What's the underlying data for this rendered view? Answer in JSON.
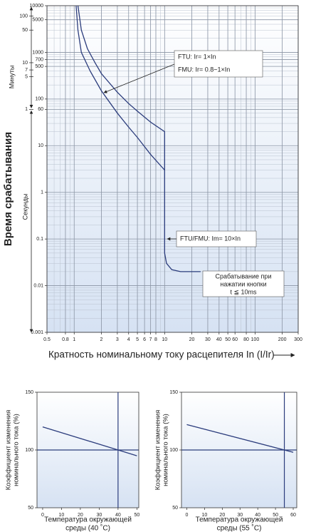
{
  "chart_data": [
    {
      "type": "line",
      "xscale": "log",
      "yscale": "log",
      "grid": true,
      "color": "#2b3c7c",
      "xlim": [
        0.5,
        300
      ],
      "ylim": [
        0.001,
        10000
      ],
      "xticks": [
        0.5,
        0.8,
        1,
        2,
        3,
        4,
        5,
        6,
        7,
        8,
        10,
        20,
        30,
        40,
        50,
        60,
        80,
        100,
        200,
        300
      ],
      "yticks": [
        0.001,
        0.01,
        0.1,
        1,
        10,
        60,
        100,
        500,
        700,
        1000,
        5000,
        10000
      ],
      "minute_ticks": [
        {
          "value": 60,
          "label": "1"
        },
        {
          "value": 300,
          "label": "5"
        },
        {
          "value": 420,
          "label": "7"
        },
        {
          "value": 600,
          "label": "10"
        },
        {
          "value": 3000,
          "label": "50"
        },
        {
          "value": 6000,
          "label": "100"
        }
      ],
      "ylabel": "Время срабатывания",
      "minute_label": "Минуты",
      "second_label": "Секунды",
      "xlabel": "Кратность номинальному току расцепителя In (I/Ir)",
      "series": [
        {
          "x": [
            1.1,
            1.2,
            1.4,
            1.7,
            2,
            3,
            4,
            5,
            7,
            10,
            10,
            10.5,
            12,
            15,
            25
          ],
          "values": [
            10000,
            3000,
            1200,
            600,
            350,
            140,
            80,
            55,
            32,
            20,
            0.05,
            0.03,
            0.022,
            0.02,
            0.02
          ]
        },
        {
          "x": [
            1.05,
            1.1,
            1.2,
            1.5,
            2,
            3,
            4,
            5,
            7,
            10
          ],
          "values": [
            10000,
            3000,
            1000,
            400,
            150,
            50,
            25,
            15,
            6.5,
            3
          ]
        }
      ],
      "annotations": [
        [
          "FTU: Ir= 1×In",
          "FMU: Ir= 0.8~1×In"
        ],
        [
          "FTU/FMU: Im= 10×In"
        ],
        [
          "Срабатывание при",
          "нажатии кнопки",
          "t ≦ 10ms"
        ]
      ]
    },
    {
      "type": "line",
      "grid": true,
      "color": "#2b3c7c",
      "xlim": [
        -3,
        51
      ],
      "ylim": [
        50,
        150
      ],
      "xticks": [
        0,
        10,
        20,
        30,
        40,
        50
      ],
      "yticks": [
        50,
        100,
        150
      ],
      "reference_x": 40,
      "ylabel": [
        "Коэффициент изменения",
        "номинального тока (%)"
      ],
      "xlabel": [
        "Температура окружающей",
        "среды (40 ˚C)"
      ],
      "series": [
        {
          "x": [
            0,
            50
          ],
          "values": [
            120,
            95
          ]
        }
      ]
    },
    {
      "type": "line",
      "grid": true,
      "color": "#2b3c7c",
      "xlim": [
        -3,
        62
      ],
      "ylim": [
        50,
        150
      ],
      "xticks": [
        0,
        10,
        20,
        30,
        40,
        50,
        60
      ],
      "yticks": [
        50,
        100,
        150
      ],
      "reference_x": 55,
      "ylabel": [
        "Коэффициент изменения",
        "номинального тока (%)"
      ],
      "xlabel": [
        "Температура окружающей",
        "среды (55 ˚C)"
      ],
      "series": [
        {
          "x": [
            0,
            60
          ],
          "values": [
            122,
            98
          ]
        }
      ]
    }
  ]
}
